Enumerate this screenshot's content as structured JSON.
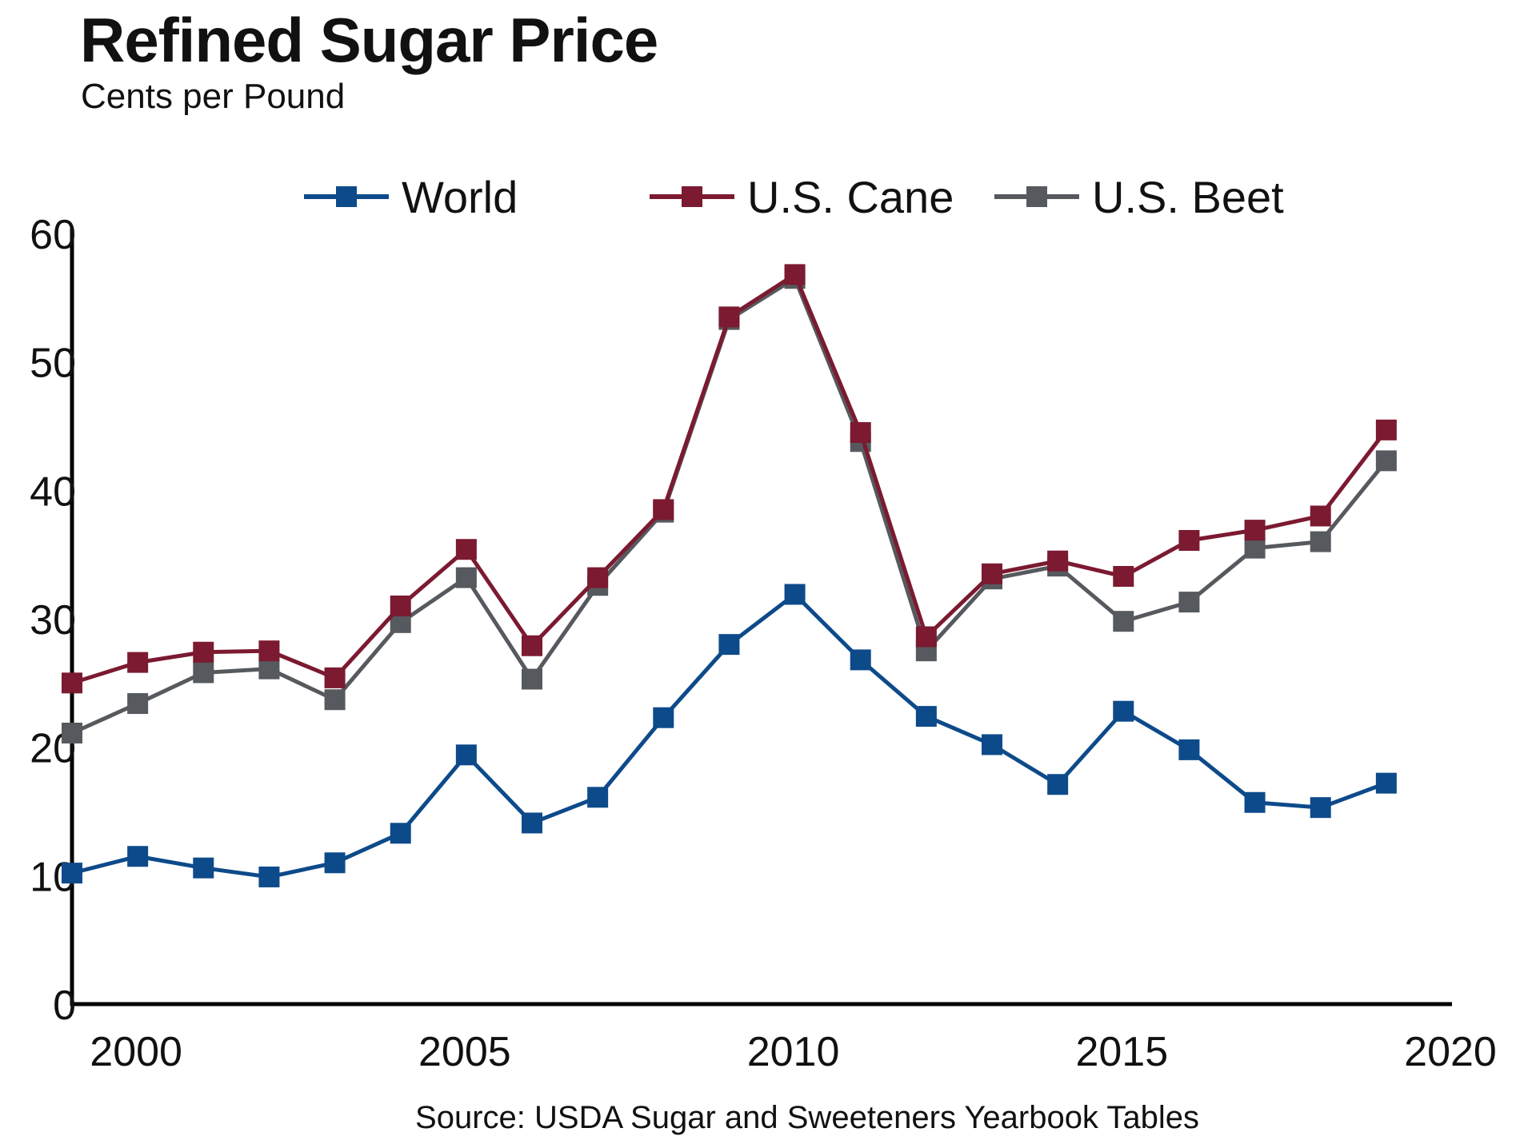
{
  "chart_data": {
    "type": "line",
    "title": "Refined Sugar Price",
    "subtitle": "Cents per Pound",
    "source": "Source: USDA Sugar and Sweeteners Yearbook Tables",
    "xlabel": "",
    "ylabel": "",
    "xlim": [
      1999,
      2020
    ],
    "ylim": [
      0,
      60
    ],
    "x_ticks": [
      2000,
      2005,
      2010,
      2015,
      2020
    ],
    "x_tick_labels": [
      "2000",
      "2005",
      "2010",
      "2015",
      "2020"
    ],
    "y_ticks": [
      0,
      10,
      20,
      30,
      40,
      50,
      60
    ],
    "y_tick_labels": [
      "0",
      "10",
      "20",
      "30",
      "40",
      "50",
      "60"
    ],
    "grid": false,
    "legend_position": "top",
    "x": [
      1999,
      2000,
      2001,
      2002,
      2003,
      2004,
      2005,
      2006,
      2007,
      2008,
      2009,
      2010,
      2011,
      2012,
      2013,
      2014,
      2015,
      2016,
      2017,
      2018,
      2019,
      2020
    ],
    "series": [
      {
        "name": "World",
        "color": "#0d4a8a",
        "values": [
          10.2,
          11.5,
          10.6,
          9.9,
          11.0,
          13.3,
          19.4,
          14.1,
          16.1,
          22.3,
          28.0,
          31.9,
          26.8,
          22.4,
          20.2,
          17.1,
          22.8,
          19.8,
          15.7,
          15.3,
          17.2,
          null
        ]
      },
      {
        "name": "U.S. Cane",
        "color": "#7b1a30",
        "values": [
          25.0,
          26.6,
          27.4,
          27.5,
          25.4,
          31.0,
          35.4,
          27.9,
          33.2,
          38.5,
          53.5,
          56.8,
          44.5,
          28.6,
          33.5,
          34.5,
          33.3,
          36.1,
          36.9,
          38.0,
          44.7,
          null
        ]
      },
      {
        "name": "U.S. Beet",
        "color": "#56595e",
        "values": [
          21.1,
          23.4,
          25.8,
          26.1,
          23.7,
          29.7,
          33.2,
          25.3,
          32.6,
          38.3,
          53.3,
          56.5,
          43.8,
          27.5,
          33.1,
          34.1,
          29.8,
          31.3,
          35.5,
          36.0,
          42.3,
          null
        ]
      }
    ]
  }
}
